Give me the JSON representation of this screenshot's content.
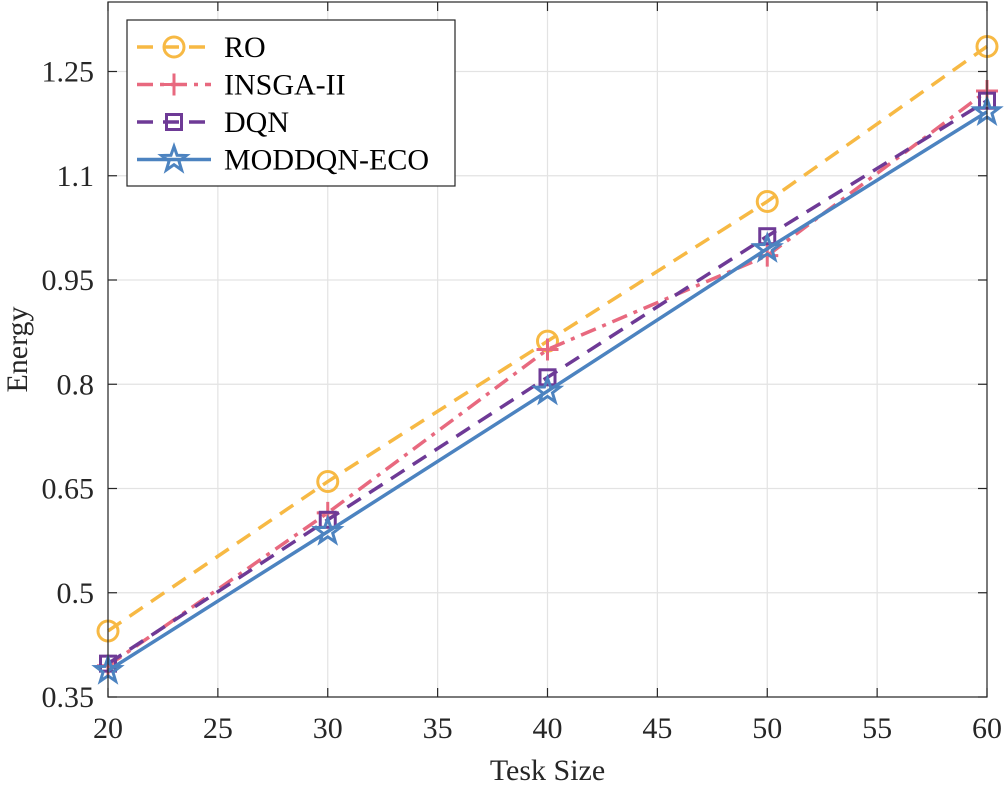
{
  "chart_data": {
    "type": "line",
    "title": "",
    "xlabel": "Tesk Size",
    "ylabel": "Energy",
    "x": [
      20,
      30,
      40,
      50,
      60
    ],
    "xlim": [
      20,
      60
    ],
    "ylim": [
      0.35,
      1.35
    ],
    "xticks": [
      20,
      25,
      30,
      35,
      40,
      45,
      50,
      55,
      60
    ],
    "yticks": [
      0.35,
      0.5,
      0.65,
      0.8,
      0.95,
      1.1,
      1.25
    ],
    "ytick_labels": [
      "0.35",
      "0.5",
      "0.65",
      "0.8",
      "0.95",
      "1.1",
      "1.25"
    ],
    "grid": true,
    "legend_position": "top-left",
    "series": [
      {
        "name": "RO",
        "values": [
          0.445,
          0.66,
          0.862,
          1.063,
          1.286
        ],
        "color": "#F7B944",
        "dash": "dashed",
        "marker": "circle"
      },
      {
        "name": "INSGA-II",
        "values": [
          0.395,
          0.615,
          0.85,
          0.985,
          1.222
        ],
        "color": "#E8697F",
        "dash": "dashdot",
        "marker": "plus"
      },
      {
        "name": "DQN",
        "values": [
          0.398,
          0.605,
          0.81,
          1.013,
          1.208
        ],
        "color": "#6E3A96",
        "dash": "dashed",
        "marker": "square"
      },
      {
        "name": "MODDQN-ECO",
        "values": [
          0.388,
          0.588,
          0.79,
          0.995,
          1.192
        ],
        "color": "#4C83C0",
        "dash": "solid",
        "marker": "star"
      }
    ]
  }
}
